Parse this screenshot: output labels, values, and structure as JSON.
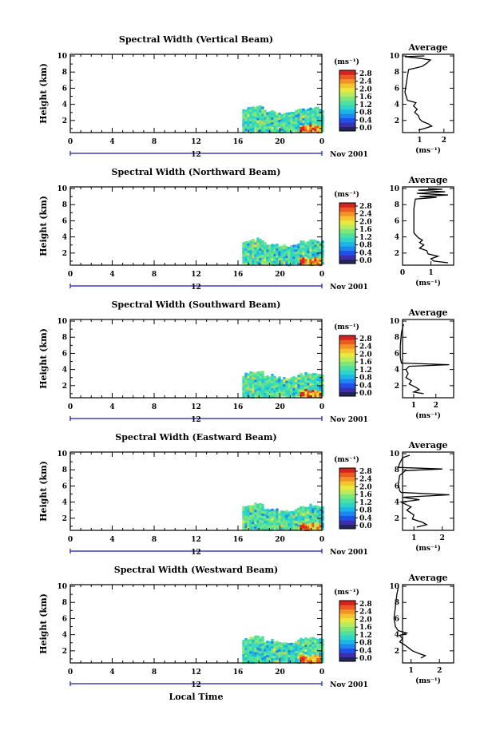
{
  "chart_data": [
    {
      "type": "heatmap",
      "title": "Spectral Width (Vertical Beam)",
      "xlabel": "",
      "ylabel": "Height (km)",
      "x_ticks": [
        "0",
        "4",
        "8",
        "12",
        "16",
        "20",
        "0"
      ],
      "y_ticks": [
        "2",
        "4",
        "6",
        "8",
        "10"
      ],
      "date_label": "12",
      "month_label": "Nov 2001",
      "xlim": [
        0,
        24
      ],
      "ylim": [
        0.5,
        10.2
      ],
      "data_extent": {
        "time": [
          16.4,
          24
        ],
        "height": [
          0.7,
          3.8
        ]
      },
      "colorbar": {
        "unit": "(ms⁻¹)",
        "ticks": [
          "2.8",
          "2.4",
          "2.0",
          "1.6",
          "1.2",
          "0.8",
          "0.4",
          "0.0"
        ]
      },
      "average_panel": {
        "title": "Average",
        "xlabel": "(ms⁻¹)",
        "x_ticks": [
          "1",
          "2"
        ],
        "y_ticks": [
          "2",
          "4",
          "6",
          "8",
          "10"
        ]
      }
    },
    {
      "type": "heatmap",
      "title": "Spectral Width (Northward Beam)",
      "xlabel": "",
      "ylabel": "Height (km)",
      "x_ticks": [
        "0",
        "4",
        "8",
        "12",
        "16",
        "20",
        "0"
      ],
      "y_ticks": [
        "2",
        "4",
        "6",
        "8",
        "10"
      ],
      "date_label": "12",
      "month_label": "Nov 2001",
      "xlim": [
        0,
        24
      ],
      "ylim": [
        0.5,
        10.2
      ],
      "data_extent": {
        "time": [
          16.4,
          24
        ],
        "height": [
          0.7,
          3.8
        ]
      },
      "colorbar": {
        "unit": "(ms⁻¹)",
        "ticks": [
          "2.8",
          "2.4",
          "2.0",
          "1.6",
          "1.2",
          "0.8",
          "0.4",
          "0.0"
        ]
      },
      "average_panel": {
        "title": "Average",
        "xlabel": "(ms⁻¹)",
        "x_ticks": [
          "0",
          "1"
        ],
        "y_ticks": [
          "2",
          "4",
          "6",
          "8",
          "10"
        ]
      }
    },
    {
      "type": "heatmap",
      "title": "Spectral Width (Southward Beam)",
      "xlabel": "",
      "ylabel": "Height (km)",
      "x_ticks": [
        "0",
        "4",
        "8",
        "12",
        "16",
        "20",
        "0"
      ],
      "y_ticks": [
        "2",
        "4",
        "6",
        "8",
        "10"
      ],
      "date_label": "12",
      "month_label": "Nov 2001",
      "xlim": [
        0,
        24
      ],
      "ylim": [
        0.5,
        10.2
      ],
      "data_extent": {
        "time": [
          16.4,
          24
        ],
        "height": [
          0.7,
          3.8
        ]
      },
      "colorbar": {
        "unit": "(ms⁻¹)",
        "ticks": [
          "2.8",
          "2.4",
          "2.0",
          "1.6",
          "1.2",
          "0.8",
          "0.4",
          "0.0"
        ]
      },
      "average_panel": {
        "title": "Average",
        "xlabel": "(ms⁻¹)",
        "x_ticks": [
          "1",
          "2"
        ],
        "y_ticks": [
          "2",
          "4",
          "6",
          "8",
          "10"
        ]
      }
    },
    {
      "type": "heatmap",
      "title": "Spectral Width (Eastward Beam)",
      "xlabel": "",
      "ylabel": "Height (km)",
      "x_ticks": [
        "0",
        "4",
        "8",
        "12",
        "16",
        "20",
        "0"
      ],
      "y_ticks": [
        "2",
        "4",
        "6",
        "8",
        "10"
      ],
      "date_label": "12",
      "month_label": "Nov 2001",
      "xlim": [
        0,
        24
      ],
      "ylim": [
        0.5,
        10.2
      ],
      "data_extent": {
        "time": [
          16.4,
          24
        ],
        "height": [
          0.7,
          3.8
        ]
      },
      "colorbar": {
        "unit": "(ms⁻¹)",
        "ticks": [
          "2.8",
          "2.4",
          "2.0",
          "1.6",
          "1.2",
          "0.8",
          "0.4",
          "0.0"
        ]
      },
      "average_panel": {
        "title": "Average",
        "xlabel": "(ms⁻¹)",
        "x_ticks": [
          "1",
          "2"
        ],
        "y_ticks": [
          "2",
          "4",
          "6",
          "8",
          "10"
        ]
      }
    },
    {
      "type": "heatmap",
      "title": "Spectral Width (Westward Beam)",
      "xlabel": "Local Time",
      "ylabel": "Height (km)",
      "x_ticks": [
        "0",
        "4",
        "8",
        "12",
        "16",
        "20",
        "0"
      ],
      "y_ticks": [
        "2",
        "4",
        "6",
        "8",
        "10"
      ],
      "date_label": "12",
      "month_label": "Nov 2001",
      "xlim": [
        0,
        24
      ],
      "ylim": [
        0.5,
        10.2
      ],
      "data_extent": {
        "time": [
          16.4,
          24
        ],
        "height": [
          0.7,
          3.8
        ]
      },
      "colorbar": {
        "unit": "(ms⁻¹)",
        "ticks": [
          "2.8",
          "2.4",
          "2.0",
          "1.6",
          "1.2",
          "0.8",
          "0.4",
          "0.0"
        ]
      },
      "average_panel": {
        "title": "Average",
        "xlabel": "(ms⁻¹)",
        "x_ticks": [
          "1",
          "2"
        ],
        "y_ticks": [
          "2",
          "4",
          "6",
          "8",
          "10"
        ]
      }
    }
  ]
}
